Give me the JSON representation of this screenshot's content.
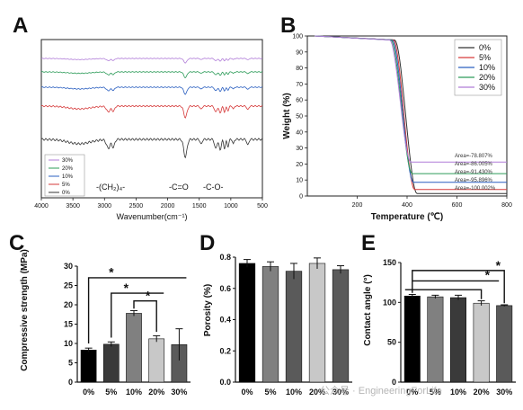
{
  "panels": {
    "A": "A",
    "B": "B",
    "C": "C",
    "D": "D",
    "E": "E"
  },
  "watermark": "公众号 · EngineeringForLife",
  "chart_data": [
    {
      "panel": "A",
      "type": "line",
      "xlabel": "Wavenumber(cm⁻¹)",
      "ylabel": "",
      "xlim": [
        4000,
        500
      ],
      "x_ticks": [
        "4000",
        "3500",
        "3000",
        "2500",
        "2000",
        "1500",
        "1000",
        "500"
      ],
      "legend": [
        "30%",
        "20%",
        "10%",
        "5%",
        "0%"
      ],
      "annotations": [
        "-(CH₂)₄-",
        "-C=O",
        "-C-O-"
      ],
      "series": [
        {
          "name": "30%",
          "color": "#b07cd8",
          "offset": 0,
          "depth": 0.35
        },
        {
          "name": "20%",
          "color": "#2e9c5a",
          "offset": 1,
          "depth": 0.45
        },
        {
          "name": "10%",
          "color": "#2a5fc0",
          "offset": 2,
          "depth": 0.55
        },
        {
          "name": "5%",
          "color": "#d63a3a",
          "offset": 3,
          "depth": 0.9
        },
        {
          "name": "0%",
          "color": "#333333",
          "offset": 4,
          "depth": 1.4
        }
      ]
    },
    {
      "panel": "B",
      "type": "line",
      "xlabel": "Temperature (℃)",
      "ylabel": "Weight (%)",
      "xlim": [
        0,
        800
      ],
      "ylim": [
        0,
        100
      ],
      "x_ticks": [
        "200",
        "400",
        "600",
        "800"
      ],
      "y_ticks": [
        "0",
        "10",
        "20",
        "30",
        "40",
        "50",
        "60",
        "70",
        "80",
        "90",
        "100"
      ],
      "legend": [
        "0%",
        "5%",
        "10%",
        "20%",
        "30%"
      ],
      "series": [
        {
          "name": "0%",
          "color": "#333333",
          "final": 1.5,
          "onset": 350,
          "end": 440
        },
        {
          "name": "5%",
          "color": "#d63a3a",
          "final": 4.1,
          "onset": 345,
          "end": 430
        },
        {
          "name": "10%",
          "color": "#2a5fc0",
          "final": 8.6,
          "onset": 340,
          "end": 425
        },
        {
          "name": "20%",
          "color": "#2e9c5a",
          "final": 14.0,
          "onset": 335,
          "end": 420
        },
        {
          "name": "30%",
          "color": "#b07cd8",
          "final": 21.2,
          "onset": 330,
          "end": 415
        }
      ],
      "area_labels": [
        "Area=-78.807%",
        "Area=-86.005%",
        "Area=-91.430%",
        "Area=-95.896%",
        "Area=-100.002%"
      ]
    },
    {
      "panel": "C",
      "type": "bar",
      "ylabel": "Compressive strength (MPa)",
      "ylim": [
        0,
        30
      ],
      "y_ticks": [
        "0",
        "5",
        "10",
        "15",
        "20",
        "25",
        "30"
      ],
      "categories": [
        "0%",
        "5%",
        "10%",
        "20%",
        "30%"
      ],
      "values": [
        8.3,
        9.8,
        17.8,
        11.2,
        9.7
      ],
      "errors": [
        0.5,
        0.6,
        0.7,
        0.8,
        4.1
      ],
      "colors": [
        "#000000",
        "#3a3a3a",
        "#808080",
        "#c8c8c8",
        "#5a5a5a"
      ],
      "significance": [
        "*",
        "*",
        "*"
      ]
    },
    {
      "panel": "D",
      "type": "bar",
      "ylabel": "Porosity (%)",
      "ylim": [
        0,
        0.8
      ],
      "y_ticks": [
        "0.0",
        "0.2",
        "0.4",
        "0.6",
        "0.8"
      ],
      "categories": [
        "0%",
        "5%",
        "10%",
        "20%",
        "30%"
      ],
      "values": [
        0.76,
        0.74,
        0.71,
        0.76,
        0.72
      ],
      "errors": [
        0.025,
        0.03,
        0.05,
        0.035,
        0.025
      ],
      "colors": [
        "#000000",
        "#808080",
        "#5a5a5a",
        "#c8c8c8",
        "#5a5a5a"
      ]
    },
    {
      "panel": "E",
      "type": "bar",
      "ylabel": "Contact angle (°)",
      "ylim": [
        0,
        150
      ],
      "y_ticks": [
        "0",
        "50",
        "100",
        "150"
      ],
      "categories": [
        "0%",
        "5%",
        "10%",
        "20%",
        "30%"
      ],
      "values": [
        108,
        107,
        106,
        99,
        96
      ],
      "errors": [
        2,
        2,
        3,
        3,
        1
      ],
      "colors": [
        "#000000",
        "#808080",
        "#3a3a3a",
        "#c8c8c8",
        "#5a5a5a"
      ],
      "significance": [
        "*",
        "*"
      ]
    }
  ]
}
